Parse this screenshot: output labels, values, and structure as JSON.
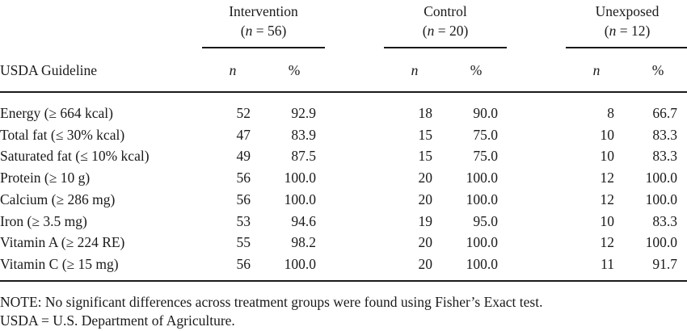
{
  "groups": [
    {
      "name": "Intervention",
      "size_label": "n",
      "size_value": "56"
    },
    {
      "name": "Control",
      "size_label": "n",
      "size_value": "20"
    },
    {
      "name": "Unexposed",
      "size_label": "n",
      "size_value": "12"
    }
  ],
  "stub_header": "USDA Guideline",
  "sub_headers": {
    "n": "n",
    "pct": "%"
  },
  "rows": [
    {
      "label": "Energy (≥ 664 kcal)",
      "cells": [
        "52",
        "92.9",
        "18",
        "90.0",
        "8",
        "66.7"
      ]
    },
    {
      "label": "Total fat (≤ 30% kcal)",
      "cells": [
        "47",
        "83.9",
        "15",
        "75.0",
        "10",
        "83.3"
      ]
    },
    {
      "label": "Saturated fat (≤ 10% kcal)",
      "cells": [
        "49",
        "87.5",
        "15",
        "75.0",
        "10",
        "83.3"
      ]
    },
    {
      "label": "Protein (≥ 10 g)",
      "cells": [
        "56",
        "100.0",
        "20",
        "100.0",
        "12",
        "100.0"
      ]
    },
    {
      "label": "Calcium (≥ 286 mg)",
      "cells": [
        "56",
        "100.0",
        "20",
        "100.0",
        "12",
        "100.0"
      ]
    },
    {
      "label": "Iron (≥ 3.5 mg)",
      "cells": [
        "53",
        "94.6",
        "19",
        "95.0",
        "10",
        "83.3"
      ]
    },
    {
      "label": "Vitamin A (≥ 224 RE)",
      "cells": [
        "55",
        "98.2",
        "20",
        "100.0",
        "12",
        "100.0"
      ]
    },
    {
      "label": "Vitamin C (≥ 15 mg)",
      "cells": [
        "56",
        "100.0",
        "20",
        "100.0",
        "11",
        "91.7"
      ]
    }
  ],
  "notes": [
    "NOTE: No significant differences across treatment groups were found using Fisher’s Exact test.",
    "USDA = U.S. Department of Agriculture."
  ]
}
